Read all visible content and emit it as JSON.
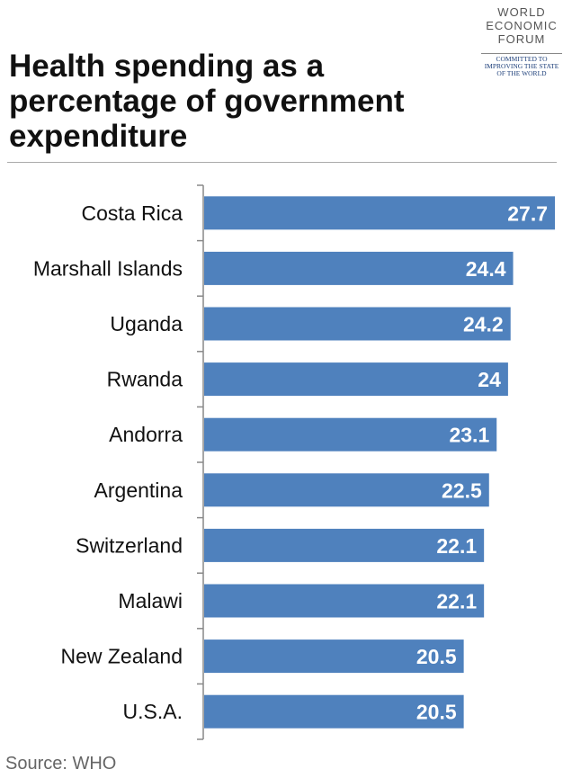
{
  "logo": {
    "lines": [
      "WORLD",
      "ECONOMIC",
      "FORUM"
    ],
    "tagline": [
      "COMMITTED TO",
      "IMPROVING THE STATE",
      "OF THE WORLD"
    ]
  },
  "source": "Source: WHO",
  "colors": {
    "bar": "#4f81bd",
    "axis": "#888888"
  },
  "chart_data": {
    "type": "bar",
    "orientation": "horizontal",
    "title": "Health spending as a percentage of government expenditure",
    "categories": [
      "Costa Rica",
      "Marshall Islands",
      "Uganda",
      "Rwanda",
      "Andorra",
      "Argentina",
      "Switzerland",
      "Malawi",
      "New Zealand",
      "U.S.A."
    ],
    "values": [
      27.7,
      24.4,
      24.2,
      24,
      23.1,
      22.5,
      22.1,
      22.1,
      20.5,
      20.5
    ],
    "value_labels": [
      "27.7",
      "24.4",
      "24.2",
      "24",
      "23.1",
      "22.5",
      "22.1",
      "22.1",
      "20.5",
      "20.5"
    ],
    "xlim": [
      0,
      27.7
    ],
    "xlabel": "",
    "ylabel": "",
    "grid": false
  }
}
